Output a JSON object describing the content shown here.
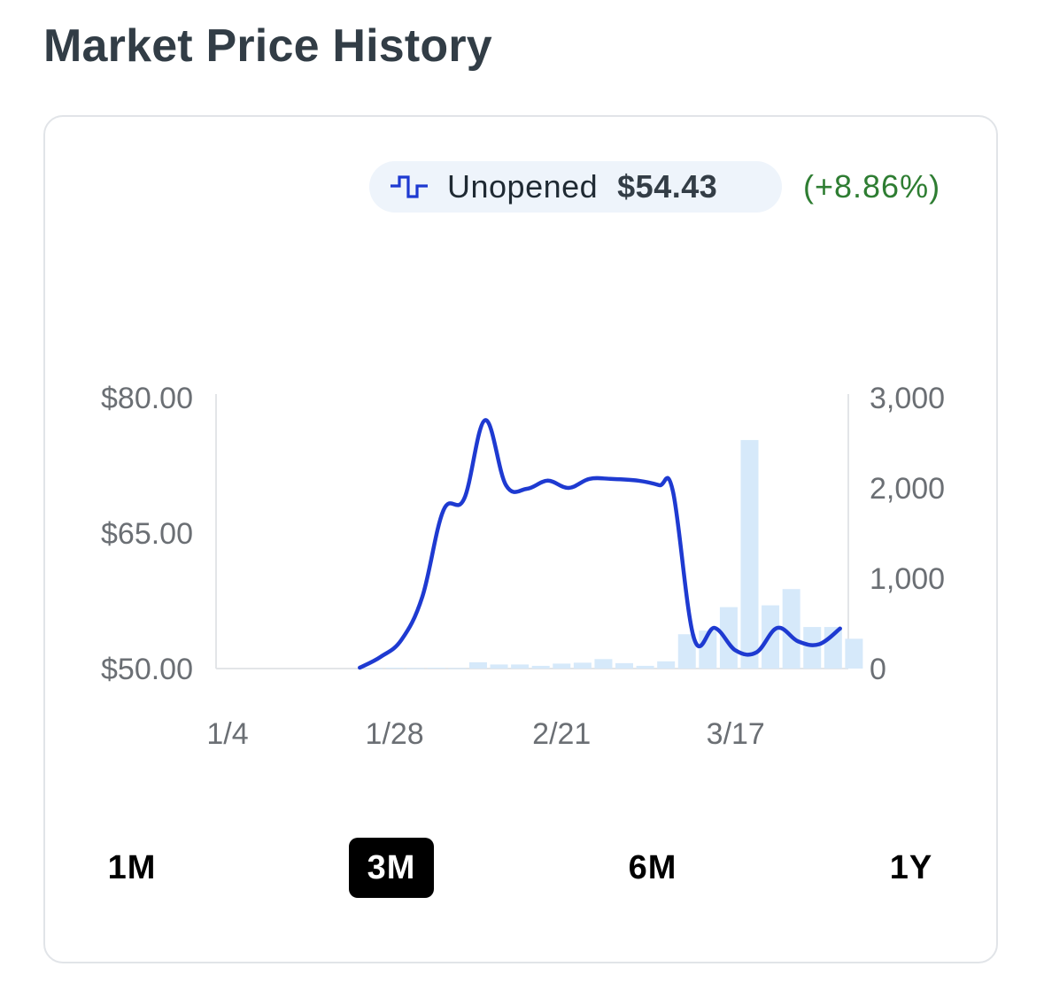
{
  "header": {
    "title": "Market Price History"
  },
  "legend": {
    "icon": "step-line-icon",
    "label": "Unopened",
    "price": "$54.43",
    "change": "(+8.86%)",
    "line_color": "#1e3ad1",
    "change_color": "#2e7d32"
  },
  "range_buttons": [
    {
      "label": "1M",
      "active": false
    },
    {
      "label": "3M",
      "active": true
    },
    {
      "label": "6M",
      "active": false
    },
    {
      "label": "1Y",
      "active": false
    }
  ],
  "chart_data": {
    "type": "line",
    "title": "",
    "x_tick_labels": [
      "1/4",
      "1/28",
      "2/21",
      "3/17"
    ],
    "x_ticks": [
      "2024-01-04",
      "2024-01-28",
      "2024-02-21",
      "2024-03-17"
    ],
    "y_left": {
      "ticks": [
        50,
        65,
        80
      ],
      "tick_labels": [
        "$50.00",
        "$65.00",
        "$80.00"
      ],
      "range": [
        50,
        80
      ]
    },
    "y_right": {
      "ticks": [
        0,
        1000,
        2000,
        3000
      ],
      "tick_labels": [
        "0",
        "1,000",
        "2,000",
        "3,000"
      ],
      "range": [
        0,
        3000
      ]
    },
    "grid": false,
    "legend_position": "top-right",
    "series": [
      {
        "name": "Unopened",
        "kind": "line",
        "axis": "left",
        "color": "#1e3ad1",
        "points": [
          [
            "2024-01-23",
            50.1
          ],
          [
            "2024-01-26",
            51.3
          ],
          [
            "2024-01-29",
            53.2
          ],
          [
            "2024-02-01",
            58.0
          ],
          [
            "2024-02-04",
            67.5
          ],
          [
            "2024-02-07",
            68.8
          ],
          [
            "2024-02-10",
            77.5
          ],
          [
            "2024-02-13",
            70.3
          ],
          [
            "2024-02-16",
            69.9
          ],
          [
            "2024-02-19",
            70.8
          ],
          [
            "2024-02-22",
            70.0
          ],
          [
            "2024-02-25",
            71.0
          ],
          [
            "2024-02-28",
            71.0
          ],
          [
            "2024-03-03",
            70.8
          ],
          [
            "2024-03-06",
            70.3
          ],
          [
            "2024-03-08",
            69.6
          ],
          [
            "2024-03-11",
            53.4
          ],
          [
            "2024-03-14",
            54.5
          ],
          [
            "2024-03-17",
            52.0
          ],
          [
            "2024-03-20",
            51.8
          ],
          [
            "2024-03-23",
            54.5
          ],
          [
            "2024-03-26",
            53.0
          ],
          [
            "2024-03-29",
            52.7
          ],
          [
            "2024-04-01",
            54.43
          ]
        ]
      },
      {
        "name": "Volume",
        "kind": "bar",
        "axis": "right",
        "color": "#d6e9fa",
        "points": [
          [
            "2024-01-25",
            5
          ],
          [
            "2024-01-28",
            10
          ],
          [
            "2024-01-31",
            5
          ],
          [
            "2024-02-03",
            10
          ],
          [
            "2024-02-06",
            5
          ],
          [
            "2024-02-09",
            70
          ],
          [
            "2024-02-12",
            45
          ],
          [
            "2024-02-15",
            45
          ],
          [
            "2024-02-18",
            30
          ],
          [
            "2024-02-21",
            55
          ],
          [
            "2024-02-24",
            65
          ],
          [
            "2024-02-27",
            105
          ],
          [
            "2024-03-01",
            60
          ],
          [
            "2024-03-04",
            30
          ],
          [
            "2024-03-07",
            80
          ],
          [
            "2024-03-10",
            380
          ],
          [
            "2024-03-13",
            420
          ],
          [
            "2024-03-16",
            680
          ],
          [
            "2024-03-19",
            2530
          ],
          [
            "2024-03-22",
            700
          ],
          [
            "2024-03-25",
            880
          ],
          [
            "2024-03-28",
            460
          ],
          [
            "2024-03-31",
            460
          ],
          [
            "2024-04-03",
            330
          ]
        ]
      }
    ]
  }
}
